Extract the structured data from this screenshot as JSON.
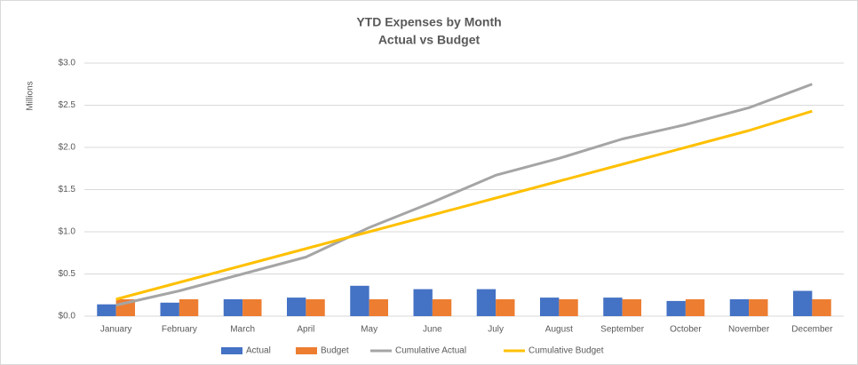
{
  "chart_data": {
    "type": "bar-line",
    "title": "YTD Expenses by Month",
    "subtitle": "Actual vs Budget",
    "y_axis_label": "Millions",
    "categories": [
      "January",
      "February",
      "March",
      "April",
      "May",
      "June",
      "July",
      "August",
      "September",
      "October",
      "November",
      "December"
    ],
    "series": [
      {
        "name": "Actual",
        "type": "bar",
        "color": "#4472c4",
        "values": [
          0.14,
          0.16,
          0.2,
          0.22,
          0.36,
          0.32,
          0.32,
          0.22,
          0.22,
          0.18,
          0.2,
          0.3
        ]
      },
      {
        "name": "Budget",
        "type": "bar",
        "color": "#ed7d31",
        "values": [
          0.2,
          0.2,
          0.2,
          0.2,
          0.2,
          0.2,
          0.2,
          0.2,
          0.2,
          0.2,
          0.2,
          0.2
        ]
      },
      {
        "name": "Cumulative Actual",
        "type": "line",
        "color": "#a5a5a5",
        "values": [
          0.13,
          0.3,
          0.5,
          0.7,
          1.05,
          1.35,
          1.67,
          1.87,
          2.1,
          2.27,
          2.47,
          2.75
        ]
      },
      {
        "name": "Cumulative Budget",
        "type": "line",
        "color": "#ffc000",
        "values": [
          0.2,
          0.4,
          0.6,
          0.8,
          1.0,
          1.2,
          1.4,
          1.6,
          1.8,
          2.0,
          2.2,
          2.43
        ]
      }
    ],
    "ylim": [
      0,
      3
    ],
    "yticks": [
      {
        "value": 0,
        "label": "$0.0"
      },
      {
        "value": 0.5,
        "label": "$0.5"
      },
      {
        "value": 1,
        "label": "$1.0"
      },
      {
        "value": 1.5,
        "label": "$1.5"
      },
      {
        "value": 2,
        "label": "$2.0"
      },
      {
        "value": 2.5,
        "label": "$2.5"
      },
      {
        "value": 3,
        "label": "$3.0"
      }
    ],
    "grid": true,
    "legend": "bottom"
  }
}
